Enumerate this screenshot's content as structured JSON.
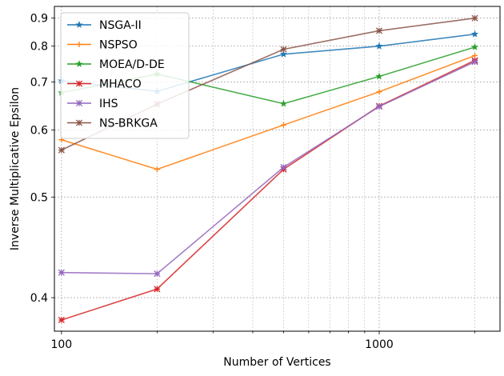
{
  "chart_data": {
    "type": "line",
    "xlabel": "Number of Vertices",
    "ylabel": "Inverse Multiplicative Epsilon",
    "x_scale": "log",
    "y_scale": "reciprocal",
    "xlim": [
      95,
      2400
    ],
    "ylim": [
      0.375,
      0.95
    ],
    "x_ticks": [
      100,
      1000
    ],
    "y_ticks": [
      0.4,
      0.5,
      0.6,
      0.7,
      0.8,
      0.9
    ],
    "grid": true,
    "legend_position": "upper-left",
    "x": [
      100,
      200,
      500,
      1000,
      2000
    ],
    "series": [
      {
        "name": "NSGA-II",
        "color": "#1f77b4",
        "marker": "tri-star",
        "values": [
          0.703,
          0.678,
          0.775,
          0.8,
          0.84
        ]
      },
      {
        "name": "NSPSO",
        "color": "#ff7f0e",
        "marker": "plus",
        "values": [
          0.583,
          0.537,
          0.609,
          0.677,
          0.771
        ]
      },
      {
        "name": "MOEA/D-DE",
        "color": "#2ca02c",
        "marker": "tri-star",
        "values": [
          0.675,
          0.72,
          0.651,
          0.714,
          0.797
        ]
      },
      {
        "name": "MHACO",
        "color": "#d62728",
        "marker": "x-star",
        "values": [
          0.383,
          0.407,
          0.537,
          0.646,
          0.757
        ]
      },
      {
        "name": "IHS",
        "color": "#9467bd",
        "marker": "x-star",
        "values": [
          0.421,
          0.42,
          0.54,
          0.645,
          0.753
        ]
      },
      {
        "name": "NS-BRKGA",
        "color": "#8c564b",
        "marker": "x-star",
        "values": [
          0.566,
          0.65,
          0.79,
          0.852,
          0.9
        ]
      }
    ]
  }
}
